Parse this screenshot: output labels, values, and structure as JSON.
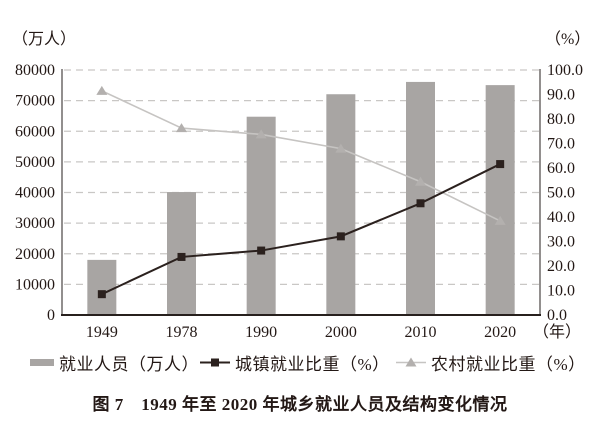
{
  "units": {
    "left": "（万人）",
    "right": "（%）",
    "x_suffix": "（年）"
  },
  "chart_data": {
    "type": "bar+line",
    "title": "图 7　1949 年至 2020 年城乡就业人员及结构变化情况",
    "categories": [
      "1949",
      "1978",
      "1990",
      "2000",
      "2010",
      "2020"
    ],
    "bar_series": {
      "name": "就业人员（万人）",
      "axis": "left",
      "values": [
        18000,
        40152,
        64749,
        72085,
        76105,
        75064
      ]
    },
    "line_series": [
      {
        "name": "城镇就业比重（%）",
        "axis": "right",
        "marker": "square",
        "values": [
          8.5,
          23.7,
          26.3,
          32.1,
          45.6,
          61.6
        ]
      },
      {
        "name": "农村就业比重（%）",
        "axis": "right",
        "marker": "triangle",
        "values": [
          91.5,
          76.3,
          73.7,
          67.9,
          54.4,
          38.4
        ]
      }
    ],
    "left_axis": {
      "label": "（万人）",
      "min": 0,
      "max": 80000,
      "step": 10000,
      "ticks": [
        "0",
        "10000",
        "20000",
        "30000",
        "40000",
        "50000",
        "60000",
        "70000",
        "80000"
      ]
    },
    "right_axis": {
      "label": "（%）",
      "min": 0,
      "max": 100,
      "step": 10,
      "ticks": [
        "0.0",
        "10.0",
        "20.0",
        "30.0",
        "40.0",
        "50.0",
        "60.0",
        "70.0",
        "80.0",
        "90.0",
        "100.0"
      ]
    },
    "grid": "dashed horizontal lines at left-axis intervals",
    "legend_position": "bottom"
  },
  "colors": {
    "bar": "#a8a5a3",
    "urban_line": "#2b211e",
    "urban_marker": "#2b211e",
    "rural_line": "#c6c4c2",
    "rural_marker": "#b3b0ae",
    "grid": "#c9c7c5",
    "side_axis": "#6e6a69",
    "baseline": "#27201d",
    "text": "#231815"
  },
  "legend": {
    "items": [
      {
        "label": "就业人员（万人）",
        "swatch": "bar"
      },
      {
        "label": "城镇就业比重（%）",
        "swatch": "square-line"
      },
      {
        "label": "农村就业比重（%）",
        "swatch": "triangle-line"
      }
    ]
  },
  "caption": "图 7　1949 年至 2020 年城乡就业人员及结构变化情况"
}
